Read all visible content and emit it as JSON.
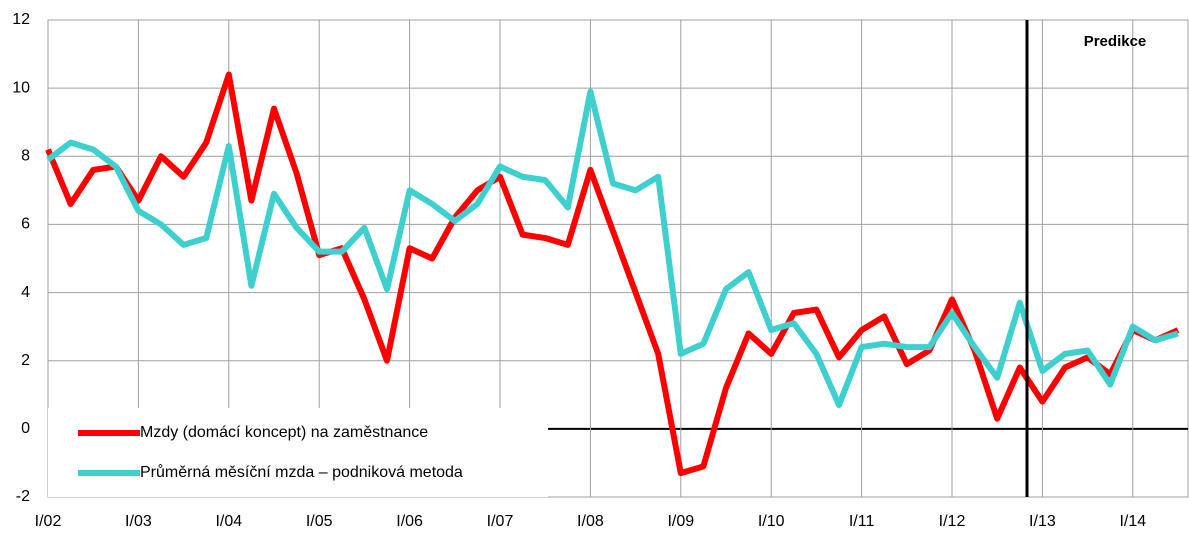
{
  "chart_data": {
    "type": "line",
    "annotation": "Predikce",
    "categories": [
      "I/02",
      null,
      null,
      null,
      "I/03",
      null,
      null,
      null,
      "I/04",
      null,
      null,
      null,
      "I/05",
      null,
      null,
      null,
      "I/06",
      null,
      null,
      null,
      "I/07",
      null,
      null,
      null,
      "I/08",
      null,
      null,
      null,
      "I/09",
      null,
      null,
      null,
      "I/10",
      null,
      null,
      null,
      "I/11",
      null,
      null,
      null,
      "I/12",
      null,
      null,
      null,
      "I/13",
      null,
      null,
      null,
      "I/14",
      null,
      null
    ],
    "series": [
      {
        "name": "Mzdy (domácí koncept) na zaměstnance",
        "color": "#ff0000",
        "values": [
          8.2,
          6.6,
          7.6,
          7.7,
          6.7,
          8.0,
          7.4,
          8.4,
          10.4,
          6.7,
          9.4,
          7.5,
          5.1,
          5.3,
          3.8,
          2.0,
          5.3,
          5.0,
          6.2,
          7.0,
          7.4,
          5.7,
          5.6,
          5.4,
          7.6,
          5.8,
          4.0,
          2.2,
          -1.3,
          -1.1,
          1.2,
          2.8,
          2.2,
          3.4,
          3.5,
          2.1,
          2.9,
          3.3,
          1.9,
          2.3,
          3.8,
          2.3,
          0.3,
          1.8,
          0.8,
          1.8,
          2.1,
          1.6,
          2.9,
          2.6,
          2.9
        ]
      },
      {
        "name": "Průměrná měsíční mzda – podniková metoda",
        "color": "#3ecfcf",
        "values": [
          7.9,
          8.4,
          8.2,
          7.7,
          6.4,
          6.0,
          5.4,
          5.6,
          8.3,
          4.2,
          6.9,
          5.9,
          5.2,
          5.2,
          5.9,
          4.1,
          7.0,
          6.6,
          6.1,
          6.6,
          7.7,
          7.4,
          7.3,
          6.5,
          9.9,
          7.2,
          7.0,
          7.4,
          2.2,
          2.5,
          4.1,
          4.6,
          2.9,
          3.1,
          2.2,
          0.7,
          2.4,
          2.5,
          2.4,
          2.4,
          3.4,
          2.4,
          1.5,
          3.7,
          1.7,
          2.2,
          2.3,
          1.3,
          3.0,
          2.6,
          2.8
        ]
      }
    ],
    "ylim": [
      -2,
      12
    ],
    "yticks": [
      -2,
      0,
      2,
      4,
      6,
      8,
      10,
      12
    ],
    "grid": true
  }
}
